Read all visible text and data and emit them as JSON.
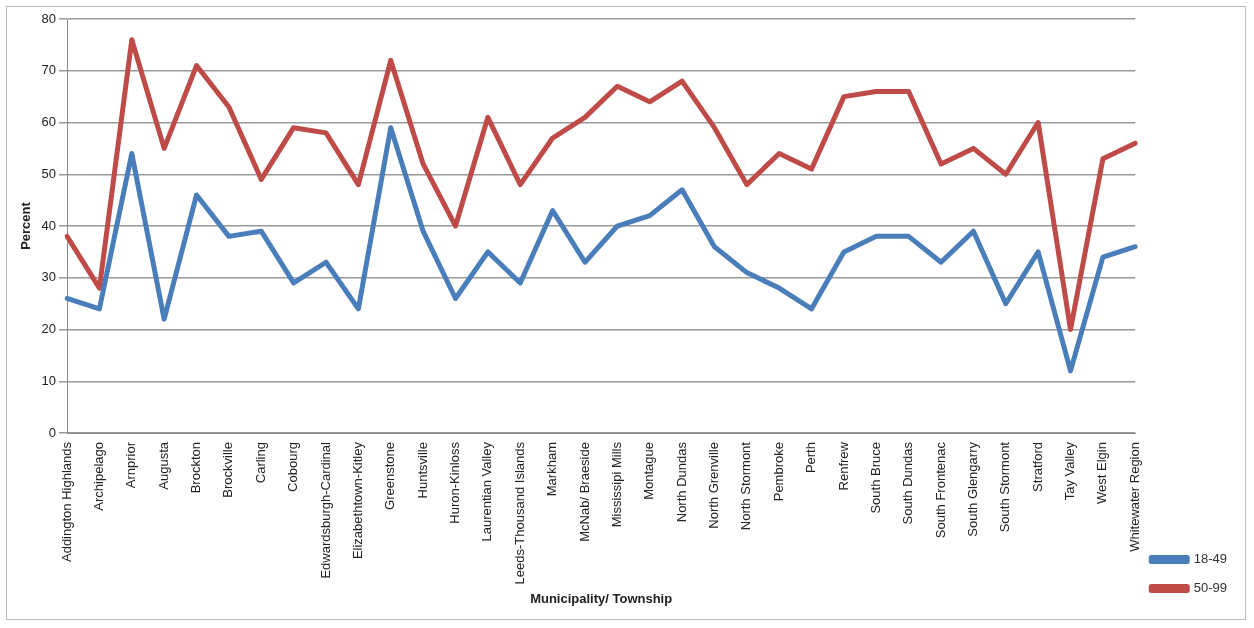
{
  "chart_data": {
    "type": "line",
    "xlabel": "Municipality/ Township",
    "ylabel": "Percent",
    "categories": [
      "Addington Highlands",
      "Archipelago",
      "Arnprior",
      "Augusta",
      "Brockton",
      "Brockville",
      "Carling",
      "Cobourg",
      "Edwardsburgh-Cardinal",
      "Elizabethtown-Kitley",
      "Greenstone",
      "Huntsville",
      "Huron-Kinloss",
      "Laurentian Valley",
      "Leeds-Thousand Islands",
      "Markham",
      "McNab/ Braeside",
      "Mississipi Mills",
      "Montague",
      "North Dundas",
      "North Grenville",
      "North Stormont",
      "Pembroke",
      "Perth",
      "Renfrew",
      "South Bruce",
      "South Dundas",
      "South Frontenac",
      "South Glengarry",
      "South Stormont",
      "Stratford",
      "Tay Valley",
      "West Elgin",
      "Whitewater Region"
    ],
    "series": [
      {
        "name": "18-49",
        "color": "#4a7ebb",
        "values": [
          26,
          24,
          54,
          22,
          46,
          38,
          39,
          29,
          33,
          24,
          59,
          39,
          26,
          35,
          29,
          43,
          33,
          40,
          42,
          47,
          36,
          31,
          28,
          24,
          35,
          38,
          38,
          33,
          39,
          25,
          35,
          12,
          34,
          36
        ]
      },
      {
        "name": "50-99",
        "color": "#be4b48",
        "values": [
          38,
          28,
          76,
          55,
          71,
          63,
          49,
          59,
          58,
          48,
          72,
          52,
          40,
          61,
          48,
          57,
          61,
          67,
          64,
          68,
          59,
          48,
          54,
          51,
          65,
          66,
          66,
          52,
          55,
          50,
          60,
          20,
          53,
          56
        ]
      }
    ],
    "ylim": [
      0,
      80
    ],
    "yticks": [
      0,
      10,
      20,
      30,
      40,
      50,
      60,
      70,
      80
    ],
    "grid": "y",
    "legend": "right",
    "marker": "none",
    "line_style": "solid"
  }
}
